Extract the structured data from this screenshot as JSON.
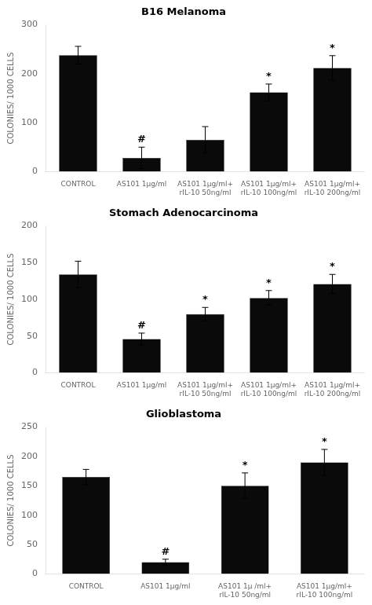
{
  "chart_data": [
    {
      "type": "bar",
      "title": "B16 Melanoma",
      "ylabel": "COLONIES/ 1000 CELLS",
      "categories": [
        "CONTROL",
        "AS101 1μg/ml",
        "AS101 1μg/ml+\nrIL-10 50ng/ml",
        "AS101 1μg/ml+\nrIL-10 100ng/ml",
        "AS101 1μg/ml+\nrIL-10 200ng/ml"
      ],
      "values": [
        238,
        28,
        65,
        162,
        212
      ],
      "errors": [
        18,
        22,
        27,
        17,
        25
      ],
      "annotations": [
        {
          "category": "AS101 1μg/ml",
          "text": "#"
        },
        {
          "category": "AS101 1μg/ml+\nrIL-10 100ng/ml",
          "text": "*"
        },
        {
          "category": "AS101 1μg/ml+\nrIL-10 200ng/ml",
          "text": "*"
        }
      ],
      "color": "#0a0a0a",
      "ylim": [
        0,
        300
      ],
      "yticks": [
        0,
        100,
        200,
        300
      ],
      "grid": false
    },
    {
      "type": "bar",
      "title": "Stomach Adenocarcinoma",
      "ylabel": "COLONIES/ 1000 CELLS",
      "categories": [
        "CONTROL",
        "AS101 1μg/ml",
        "AS101 1μg/ml+\nrIL-10 50ng/ml",
        "AS101 1μg/ml+\nrIL-10 100ng/ml",
        "AS101 1μg/ml+\nrIL-10 200ng/ml"
      ],
      "values": [
        134,
        46,
        80,
        102,
        121
      ],
      "errors": [
        18,
        8,
        9,
        10,
        13
      ],
      "annotations": [
        {
          "category": "AS101 1μg/ml",
          "text": "#"
        },
        {
          "category": "AS101 1μg/ml+\nrIL-10 50ng/ml",
          "text": "*"
        },
        {
          "category": "AS101 1μg/ml+\nrIL-10 100ng/ml",
          "text": "*"
        },
        {
          "category": "AS101 1μg/ml+\nrIL-10 200ng/ml",
          "text": "*"
        }
      ],
      "color": "#0a0a0a",
      "ylim": [
        0,
        200
      ],
      "yticks": [
        0,
        50,
        100,
        150,
        200
      ],
      "grid": false
    },
    {
      "type": "bar",
      "title": "Glioblastoma",
      "ylabel": "COLONIES/ 1000 CELLS",
      "categories": [
        "CONTROL",
        "AS101 1μg/ml",
        "AS101 1μ /ml+\nrIL-10 50ng/ml",
        "AS101 1μg/ml+\nrIL-10 100ng/ml"
      ],
      "values": [
        165,
        20,
        150,
        190
      ],
      "errors": [
        13,
        5,
        22,
        22
      ],
      "annotations": [
        {
          "category": "AS101 1μg/ml",
          "text": "#"
        },
        {
          "category": "AS101 1μ /ml+\nrIL-10 50ng/ml",
          "text": "*"
        },
        {
          "category": "AS101 1μg/ml+\nrIL-10 100ng/ml",
          "text": "*"
        }
      ],
      "color": "#0a0a0a",
      "ylim": [
        0,
        250
      ],
      "yticks": [
        0,
        50,
        100,
        150,
        200,
        250
      ],
      "grid": false
    }
  ]
}
